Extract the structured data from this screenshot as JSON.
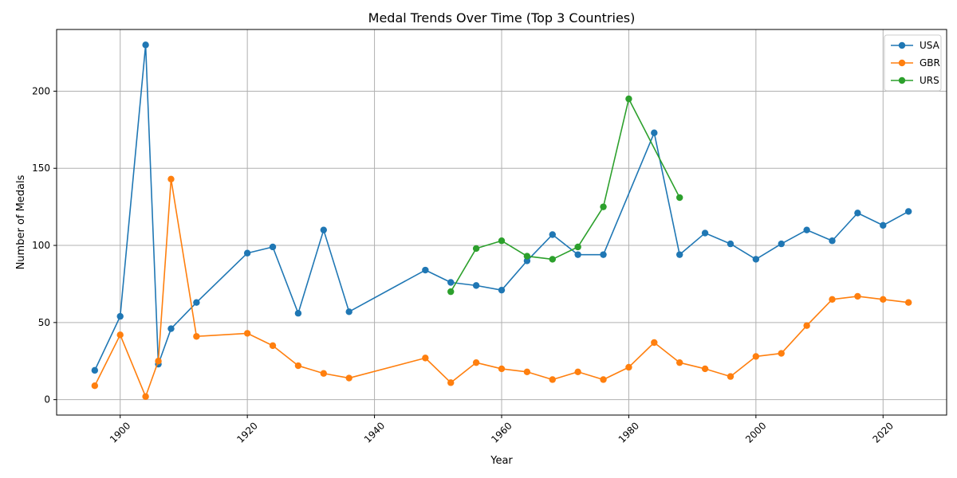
{
  "chart_data": {
    "type": "line",
    "title": "Medal Trends Over Time (Top 3 Countries)",
    "xlabel": "Year",
    "ylabel": "Number of Medals",
    "xlim": [
      1890,
      2030
    ],
    "ylim": [
      -10,
      240
    ],
    "xticks": [
      1900,
      1920,
      1940,
      1960,
      1980,
      2000,
      2020
    ],
    "yticks": [
      0,
      50,
      100,
      150,
      200
    ],
    "grid": true,
    "legend_position": "top-right",
    "series": [
      {
        "name": "USA",
        "color": "#1f77b4",
        "x": [
          1896,
          1900,
          1904,
          1906,
          1908,
          1912,
          1920,
          1924,
          1928,
          1932,
          1936,
          1948,
          1952,
          1956,
          1960,
          1964,
          1968,
          1972,
          1976,
          1984,
          1988,
          1992,
          1996,
          2000,
          2004,
          2008,
          2012,
          2016,
          2020,
          2024
        ],
        "y": [
          19,
          54,
          230,
          23,
          46,
          63,
          95,
          99,
          56,
          110,
          57,
          84,
          76,
          74,
          71,
          90,
          107,
          94,
          94,
          173,
          94,
          108,
          101,
          91,
          101,
          110,
          103,
          121,
          113,
          122
        ]
      },
      {
        "name": "GBR",
        "color": "#ff7f0e",
        "x": [
          1896,
          1900,
          1904,
          1906,
          1908,
          1912,
          1920,
          1924,
          1928,
          1932,
          1936,
          1948,
          1952,
          1956,
          1960,
          1964,
          1968,
          1972,
          1976,
          1980,
          1984,
          1988,
          1992,
          1996,
          2000,
          2004,
          2008,
          2012,
          2016,
          2020,
          2024
        ],
        "y": [
          9,
          42,
          2,
          25,
          143,
          41,
          43,
          35,
          22,
          17,
          14,
          27,
          11,
          24,
          20,
          18,
          13,
          18,
          13,
          21,
          37,
          24,
          20,
          15,
          28,
          30,
          48,
          65,
          67,
          65,
          63
        ]
      },
      {
        "name": "URS",
        "color": "#2ca02c",
        "x": [
          1952,
          1956,
          1960,
          1964,
          1968,
          1972,
          1976,
          1980,
          1988
        ],
        "y": [
          70,
          98,
          103,
          93,
          91,
          99,
          125,
          195,
          131
        ]
      }
    ]
  }
}
